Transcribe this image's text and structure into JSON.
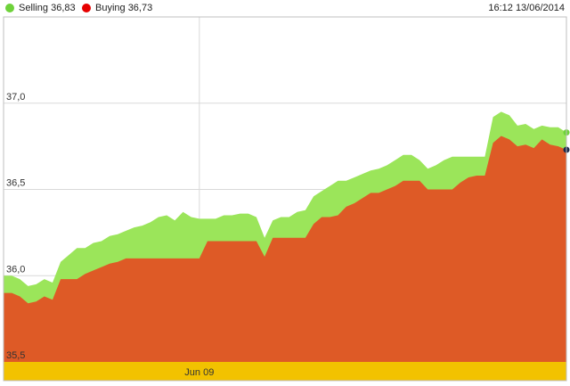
{
  "legend": {
    "selling_label": "Selling 36,83",
    "buying_label": "Buying 36,73"
  },
  "timestamp": "16:12 13/06/2014",
  "colors": {
    "selling": "#9be55a",
    "selling_dot": "#6ed23a",
    "buying": "#de5a26",
    "buying_dot": "#e60000",
    "date_band": "#f2c200",
    "grid": "#d9d9d9"
  },
  "chart_data": {
    "type": "area",
    "title": "",
    "xlabel": "",
    "ylabel": "",
    "ylim": [
      35.5,
      37.5
    ],
    "y_ticks": [
      {
        "value": 35.5,
        "label": "35,5"
      },
      {
        "value": 36.0,
        "label": "36,0"
      },
      {
        "value": 36.5,
        "label": "36,5"
      },
      {
        "value": 37.0,
        "label": "37,0"
      }
    ],
    "x_tick_label": "Jun 09",
    "x_tick_index": 24,
    "grid": true,
    "legend_position": "top-left",
    "series": [
      {
        "name": "Selling 36,83",
        "values": [
          36.0,
          36.0,
          35.98,
          35.94,
          35.95,
          35.98,
          35.96,
          36.08,
          36.12,
          36.16,
          36.16,
          36.19,
          36.2,
          36.23,
          36.24,
          36.26,
          36.28,
          36.29,
          36.31,
          36.34,
          36.35,
          36.32,
          36.37,
          36.34,
          36.33,
          36.33,
          36.33,
          36.35,
          36.35,
          36.36,
          36.36,
          36.34,
          36.22,
          36.32,
          36.34,
          36.34,
          36.37,
          36.38,
          36.46,
          36.49,
          36.52,
          36.55,
          36.55,
          36.57,
          36.59,
          36.61,
          36.62,
          36.64,
          36.67,
          36.7,
          36.7,
          36.67,
          36.62,
          36.64,
          36.67,
          36.69,
          36.69,
          36.69,
          36.69,
          36.69,
          36.92,
          36.95,
          36.93,
          36.87,
          36.88,
          36.85,
          36.87,
          36.86,
          36.86,
          36.83
        ]
      },
      {
        "name": "Buying 36,73",
        "values": [
          35.9,
          35.9,
          35.88,
          35.84,
          35.85,
          35.88,
          35.86,
          35.98,
          35.98,
          35.98,
          36.01,
          36.03,
          36.05,
          36.07,
          36.08,
          36.1,
          36.1,
          36.1,
          36.1,
          36.1,
          36.1,
          36.1,
          36.1,
          36.1,
          36.1,
          36.2,
          36.2,
          36.2,
          36.2,
          36.2,
          36.2,
          36.2,
          36.11,
          36.22,
          36.22,
          36.22,
          36.22,
          36.22,
          36.3,
          36.34,
          36.34,
          36.35,
          36.4,
          36.42,
          36.45,
          36.48,
          36.48,
          36.5,
          36.52,
          36.55,
          36.55,
          36.55,
          36.5,
          36.5,
          36.5,
          36.5,
          36.54,
          36.57,
          36.58,
          36.58,
          36.77,
          36.81,
          36.79,
          36.75,
          36.76,
          36.74,
          36.79,
          36.76,
          36.75,
          36.73
        ]
      }
    ]
  }
}
